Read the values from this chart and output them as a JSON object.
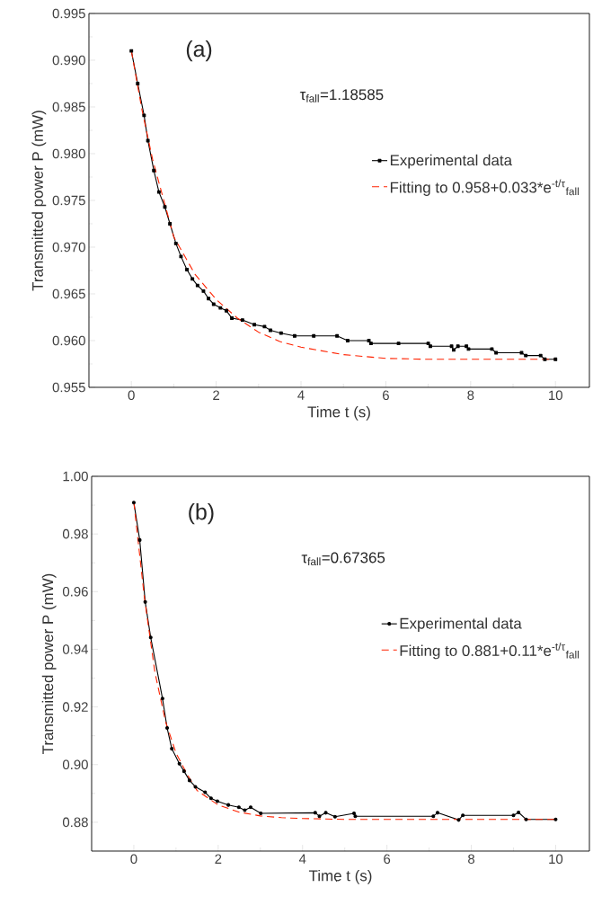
{
  "chart_data": [
    {
      "type": "line",
      "xlabel": "Time t (s)",
      "ylabel": "Transmitted power P (mW)",
      "annotations": [
        "(a)",
        "τ$_{fall}$=1.18585"
      ],
      "xlim": [
        -1,
        10.8
      ],
      "ylim": [
        0.955,
        0.995
      ],
      "xticks": [
        0,
        {
          "value": 1,
          "label": null
        },
        2,
        {
          "value": 3,
          "label": null
        },
        4,
        {
          "value": 5,
          "label": null
        },
        6,
        {
          "value": 7,
          "label": null
        },
        8,
        {
          "value": 9,
          "label": null
        },
        10
      ],
      "yticks": [
        {
          "value": 0.955,
          "label": "0.955"
        },
        {
          "value": 0.9575,
          "label": null
        },
        {
          "value": 0.96,
          "label": "0.960"
        },
        {
          "value": 0.9625,
          "label": null
        },
        {
          "value": 0.965,
          "label": "0.965"
        },
        {
          "value": 0.9675,
          "label": null
        },
        {
          "value": 0.97,
          "label": "0.970"
        },
        {
          "value": 0.9725,
          "label": null
        },
        {
          "value": 0.975,
          "label": "0.975"
        },
        {
          "value": 0.9775,
          "label": null
        },
        {
          "value": 0.98,
          "label": "0.980"
        },
        {
          "value": 0.9825,
          "label": null
        },
        {
          "value": 0.985,
          "label": "0.985"
        },
        {
          "value": 0.9875,
          "label": null
        },
        {
          "value": 0.99,
          "label": "0.990"
        },
        {
          "value": 0.9925,
          "label": null
        },
        {
          "value": 0.995,
          "label": "0.995"
        }
      ],
      "legend": "right",
      "series": [
        {
          "name": "Experimental data",
          "color": "#000000",
          "marker": "square",
          "line_style": "solid",
          "x": [
            0,
            0.15,
            0.3,
            0.39,
            0.53,
            0.65,
            0.79,
            0.91,
            1.05,
            1.17,
            1.31,
            1.44,
            1.56,
            1.7,
            1.82,
            1.94,
            2.1,
            2.24,
            2.37,
            2.62,
            2.9,
            3.14,
            3.28,
            3.53,
            3.85,
            4.3,
            4.85,
            5.1,
            5.6,
            5.65,
            6.3,
            7.0,
            7.05,
            7.55,
            7.6,
            7.7,
            7.9,
            7.95,
            8.5,
            8.6,
            9.2,
            9.3,
            9.65,
            9.75,
            10
          ],
          "values": [
            0.991,
            0.9875,
            0.9841,
            0.9814,
            0.9782,
            0.9759,
            0.9743,
            0.9725,
            0.9704,
            0.969,
            0.9676,
            0.9666,
            0.9659,
            0.9653,
            0.9645,
            0.9639,
            0.9635,
            0.9632,
            0.9624,
            0.9622,
            0.9617,
            0.9615,
            0.9611,
            0.9608,
            0.9605,
            0.9605,
            0.9605,
            0.96,
            0.96,
            0.9597,
            0.9597,
            0.9597,
            0.9594,
            0.9594,
            0.959,
            0.9594,
            0.9594,
            0.9591,
            0.9591,
            0.9587,
            0.9587,
            0.9584,
            0.9584,
            0.958,
            0.958
          ]
        },
        {
          "name": "Fitting to 0.958+0.033*e$^{-t/τ}$$_{fall}$",
          "color": "#ff2200",
          "marker": "none",
          "line_style": "dashed",
          "x": [
            0,
            0.25,
            0.5,
            1,
            1.5,
            2,
            2.5,
            3,
            3.5,
            4,
            5,
            6,
            7,
            8,
            9,
            10
          ],
          "values": [
            0.991,
            0.9847,
            0.9794,
            0.9711,
            0.9671,
            0.9644,
            0.9624,
            0.9609,
            0.9599,
            0.9593,
            0.9585,
            0.9581,
            0.958,
            0.958,
            0.958,
            0.958
          ]
        }
      ]
    },
    {
      "type": "line",
      "xlabel": "Time t (s)",
      "ylabel": "Transmitted power P (mW)",
      "annotations": [
        "(b)",
        "τ$_{fall}$=0.67365"
      ],
      "xlim": [
        -1,
        10.8
      ],
      "ylim": [
        0.87,
        1.0
      ],
      "xticks": [
        0,
        {
          "value": 1,
          "label": null
        },
        2,
        {
          "value": 3,
          "label": null
        },
        4,
        {
          "value": 5,
          "label": null
        },
        6,
        {
          "value": 7,
          "label": null
        },
        8,
        {
          "value": 9,
          "label": null
        },
        10
      ],
      "yticks": [
        {
          "value": 0.88,
          "label": "0.88"
        },
        {
          "value": 0.89,
          "label": null
        },
        {
          "value": 0.9,
          "label": "0.90"
        },
        {
          "value": 0.91,
          "label": null
        },
        {
          "value": 0.92,
          "label": "0.92"
        },
        {
          "value": 0.93,
          "label": null
        },
        {
          "value": 0.94,
          "label": "0.94"
        },
        {
          "value": 0.95,
          "label": null
        },
        {
          "value": 0.96,
          "label": "0.96"
        },
        {
          "value": 0.97,
          "label": null
        },
        {
          "value": 0.98,
          "label": "0.98"
        },
        {
          "value": 0.99,
          "label": null
        },
        {
          "value": 1.0,
          "label": "1.00"
        }
      ],
      "legend": "right",
      "series": [
        {
          "name": "Experimental data",
          "color": "#000000",
          "marker": "circle",
          "line_style": "solid",
          "x": [
            0,
            0.14,
            0.27,
            0.4,
            0.68,
            0.79,
            0.9,
            1.08,
            1.19,
            1.32,
            1.46,
            1.69,
            1.83,
            1.98,
            2.24,
            2.49,
            2.63,
            2.77,
            3.01,
            4.3,
            4.4,
            4.55,
            4.77,
            5.22,
            5.25,
            7.1,
            7.2,
            7.7,
            7.8,
            9.0,
            9.12,
            9.3,
            10
          ],
          "values": [
            0.9909,
            0.9779,
            0.9564,
            0.9441,
            0.9229,
            0.9127,
            0.9055,
            0.9003,
            0.8977,
            0.8945,
            0.8923,
            0.8904,
            0.8883,
            0.8873,
            0.886,
            0.8852,
            0.8842,
            0.8852,
            0.8831,
            0.8833,
            0.8821,
            0.8833,
            0.8819,
            0.8831,
            0.8821,
            0.8821,
            0.8833,
            0.8808,
            0.8824,
            0.8824,
            0.8834,
            0.881,
            0.881
          ]
        },
        {
          "name": "Fitting to 0.881+0.11*e$^{-t/τ}$$_{fall}$",
          "color": "#ff2200",
          "marker": "none",
          "line_style": "dashed",
          "x": [
            0,
            0.25,
            0.5,
            0.75,
            1,
            1.25,
            1.5,
            2,
            2.5,
            3,
            3.5,
            4,
            5,
            6,
            8,
            10
          ],
          "values": [
            0.991,
            0.958,
            0.932,
            0.915,
            0.904,
            0.897,
            0.891,
            0.886,
            0.8835,
            0.8822,
            0.8816,
            0.8813,
            0.881,
            0.881,
            0.881,
            0.881
          ]
        }
      ]
    }
  ]
}
